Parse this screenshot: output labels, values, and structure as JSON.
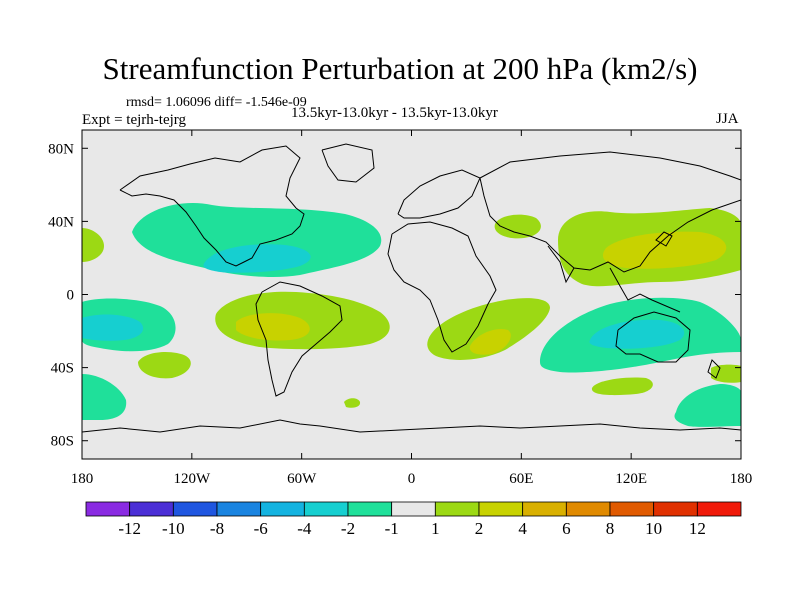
{
  "title": "Streamfunction Perturbation at 200 hPa (km2/s)",
  "stats": "rmsd= 1.06096 diff= -1.546e-09",
  "experiment": "Expt = tejrh-tejrg",
  "period": "13.5kyr-13.0kyr - 13.5kyr-13.0kyr",
  "season": "JJA",
  "colors": {
    "ocean_neutral": "#e8e8e8",
    "pos_1_2": "#9cd914",
    "pos_2_4": "#c8d200",
    "neg_1_2": "#1fe09a",
    "neg_2_4": "#16cfd0"
  },
  "chart_data": {
    "type": "heatmap",
    "title": "Streamfunction Perturbation at 200 hPa (km2/s)",
    "projection": "cylindrical equidistant",
    "xlim": [
      -180,
      180
    ],
    "ylim": [
      -90,
      90
    ],
    "x_ticks": [
      {
        "value": -180,
        "label": "180"
      },
      {
        "value": -120,
        "label": "120W"
      },
      {
        "value": -60,
        "label": "60W"
      },
      {
        "value": 0,
        "label": "0"
      },
      {
        "value": 60,
        "label": "60E"
      },
      {
        "value": 120,
        "label": "120E"
      },
      {
        "value": 180,
        "label": "180"
      }
    ],
    "y_ticks": [
      {
        "value": 80,
        "label": "80N"
      },
      {
        "value": 40,
        "label": "40N"
      },
      {
        "value": 0,
        "label": "0"
      },
      {
        "value": -40,
        "label": "40S"
      },
      {
        "value": -80,
        "label": "80S"
      }
    ],
    "colorbar": {
      "boundaries": [
        "-12",
        "-10",
        "-8",
        "-6",
        "-4",
        "-2",
        "-1",
        "1",
        "2",
        "4",
        "6",
        "8",
        "10",
        "12"
      ],
      "colors": [
        "#8a2be2",
        "#4b2fd6",
        "#1f56e0",
        "#1a84e0",
        "#14b3e0",
        "#16cfd0",
        "#1fe09a",
        "#e8e8e8",
        "#9cd914",
        "#c8d200",
        "#d9b000",
        "#e08a00",
        "#e05a00",
        "#e03000",
        "#f01a0a"
      ]
    },
    "regions": [
      {
        "name": "North Pacific-Atlantic negative band",
        "class": "-2 to -1",
        "lon_center": -95,
        "lat_center": 33
      },
      {
        "name": "Caribbean negative core",
        "class": "-4 to -2",
        "lon_center": -85,
        "lat_center": 22
      },
      {
        "name": "Tropical East Pacific negative core",
        "class": "-4 to -2",
        "lon_center": -165,
        "lat_center": -17
      },
      {
        "name": "Tropical East Pacific negative band",
        "class": "-2 to -1",
        "lon_center": -160,
        "lat_center": -15
      },
      {
        "name": "South America positive",
        "class": "1 to 2",
        "lon_center": -70,
        "lat_center": -15
      },
      {
        "name": "South America positive core",
        "class": "2 to 4",
        "lon_center": -80,
        "lat_center": -18
      },
      {
        "name": "South Pacific positive",
        "class": "1 to 2",
        "lon_center": -135,
        "lat_center": -35
      },
      {
        "name": "Southern Africa positive",
        "class": "1 to 2",
        "lon_center": 30,
        "lat_center": -25
      },
      {
        "name": "Southern Africa positive core",
        "class": "2 to 4",
        "lon_center": 40,
        "lat_center": -28
      },
      {
        "name": "Asia-West Pacific positive",
        "class": "1 to 2",
        "lon_center": 125,
        "lat_center": 35
      },
      {
        "name": "Asia-West Pacific positive core",
        "class": "2 to 4",
        "lon_center": 135,
        "lat_center": 32
      },
      {
        "name": "Caspian positive",
        "class": "1 to 2",
        "lon_center": 55,
        "lat_center": 37
      },
      {
        "name": "Indian Ocean-Australia negative",
        "class": "-2 to -1",
        "lon_center": 120,
        "lat_center": -15
      },
      {
        "name": "Australia negative core",
        "class": "-4 to -2",
        "lon_center": 115,
        "lat_center": -20
      },
      {
        "name": "South Pacific (Tasman) negative",
        "class": "-2 to -1",
        "lon_center": 170,
        "lat_center": -60
      },
      {
        "name": "Southeast Pacific negative",
        "class": "-2 to -1",
        "lon_center": -175,
        "lat_center": -55
      }
    ]
  }
}
